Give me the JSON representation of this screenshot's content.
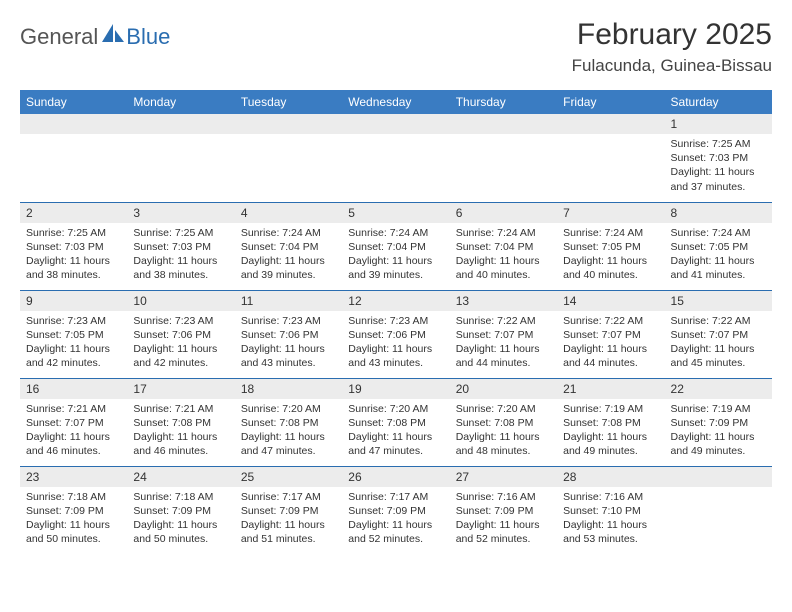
{
  "logo": {
    "word1": "General",
    "word2": "Blue"
  },
  "title": "February 2025",
  "location": "Fulacunda, Guinea-Bissau",
  "colors": {
    "header_bg": "#3a7cc2",
    "header_text": "#ffffff",
    "row_divider": "#2a6db0",
    "daynum_bg": "#ececec",
    "page_bg": "#ffffff",
    "text": "#333333",
    "logo_blue": "#2a6db0",
    "logo_gray": "#555555"
  },
  "weekdays": [
    "Sunday",
    "Monday",
    "Tuesday",
    "Wednesday",
    "Thursday",
    "Friday",
    "Saturday"
  ],
  "weeks": [
    [
      null,
      null,
      null,
      null,
      null,
      null,
      {
        "n": "1",
        "sunrise": "7:25 AM",
        "sunset": "7:03 PM",
        "daylight": "11 hours and 37 minutes."
      }
    ],
    [
      {
        "n": "2",
        "sunrise": "7:25 AM",
        "sunset": "7:03 PM",
        "daylight": "11 hours and 38 minutes."
      },
      {
        "n": "3",
        "sunrise": "7:25 AM",
        "sunset": "7:03 PM",
        "daylight": "11 hours and 38 minutes."
      },
      {
        "n": "4",
        "sunrise": "7:24 AM",
        "sunset": "7:04 PM",
        "daylight": "11 hours and 39 minutes."
      },
      {
        "n": "5",
        "sunrise": "7:24 AM",
        "sunset": "7:04 PM",
        "daylight": "11 hours and 39 minutes."
      },
      {
        "n": "6",
        "sunrise": "7:24 AM",
        "sunset": "7:04 PM",
        "daylight": "11 hours and 40 minutes."
      },
      {
        "n": "7",
        "sunrise": "7:24 AM",
        "sunset": "7:05 PM",
        "daylight": "11 hours and 40 minutes."
      },
      {
        "n": "8",
        "sunrise": "7:24 AM",
        "sunset": "7:05 PM",
        "daylight": "11 hours and 41 minutes."
      }
    ],
    [
      {
        "n": "9",
        "sunrise": "7:23 AM",
        "sunset": "7:05 PM",
        "daylight": "11 hours and 42 minutes."
      },
      {
        "n": "10",
        "sunrise": "7:23 AM",
        "sunset": "7:06 PM",
        "daylight": "11 hours and 42 minutes."
      },
      {
        "n": "11",
        "sunrise": "7:23 AM",
        "sunset": "7:06 PM",
        "daylight": "11 hours and 43 minutes."
      },
      {
        "n": "12",
        "sunrise": "7:23 AM",
        "sunset": "7:06 PM",
        "daylight": "11 hours and 43 minutes."
      },
      {
        "n": "13",
        "sunrise": "7:22 AM",
        "sunset": "7:07 PM",
        "daylight": "11 hours and 44 minutes."
      },
      {
        "n": "14",
        "sunrise": "7:22 AM",
        "sunset": "7:07 PM",
        "daylight": "11 hours and 44 minutes."
      },
      {
        "n": "15",
        "sunrise": "7:22 AM",
        "sunset": "7:07 PM",
        "daylight": "11 hours and 45 minutes."
      }
    ],
    [
      {
        "n": "16",
        "sunrise": "7:21 AM",
        "sunset": "7:07 PM",
        "daylight": "11 hours and 46 minutes."
      },
      {
        "n": "17",
        "sunrise": "7:21 AM",
        "sunset": "7:08 PM",
        "daylight": "11 hours and 46 minutes."
      },
      {
        "n": "18",
        "sunrise": "7:20 AM",
        "sunset": "7:08 PM",
        "daylight": "11 hours and 47 minutes."
      },
      {
        "n": "19",
        "sunrise": "7:20 AM",
        "sunset": "7:08 PM",
        "daylight": "11 hours and 47 minutes."
      },
      {
        "n": "20",
        "sunrise": "7:20 AM",
        "sunset": "7:08 PM",
        "daylight": "11 hours and 48 minutes."
      },
      {
        "n": "21",
        "sunrise": "7:19 AM",
        "sunset": "7:08 PM",
        "daylight": "11 hours and 49 minutes."
      },
      {
        "n": "22",
        "sunrise": "7:19 AM",
        "sunset": "7:09 PM",
        "daylight": "11 hours and 49 minutes."
      }
    ],
    [
      {
        "n": "23",
        "sunrise": "7:18 AM",
        "sunset": "7:09 PM",
        "daylight": "11 hours and 50 minutes."
      },
      {
        "n": "24",
        "sunrise": "7:18 AM",
        "sunset": "7:09 PM",
        "daylight": "11 hours and 50 minutes."
      },
      {
        "n": "25",
        "sunrise": "7:17 AM",
        "sunset": "7:09 PM",
        "daylight": "11 hours and 51 minutes."
      },
      {
        "n": "26",
        "sunrise": "7:17 AM",
        "sunset": "7:09 PM",
        "daylight": "11 hours and 52 minutes."
      },
      {
        "n": "27",
        "sunrise": "7:16 AM",
        "sunset": "7:09 PM",
        "daylight": "11 hours and 52 minutes."
      },
      {
        "n": "28",
        "sunrise": "7:16 AM",
        "sunset": "7:10 PM",
        "daylight": "11 hours and 53 minutes."
      },
      null
    ]
  ],
  "labels": {
    "sunrise": "Sunrise:",
    "sunset": "Sunset:",
    "daylight": "Daylight:"
  },
  "typography": {
    "title_fontsize": 30,
    "location_fontsize": 17,
    "weekday_fontsize": 12,
    "daynum_fontsize": 12,
    "body_fontsize": 10.5
  }
}
